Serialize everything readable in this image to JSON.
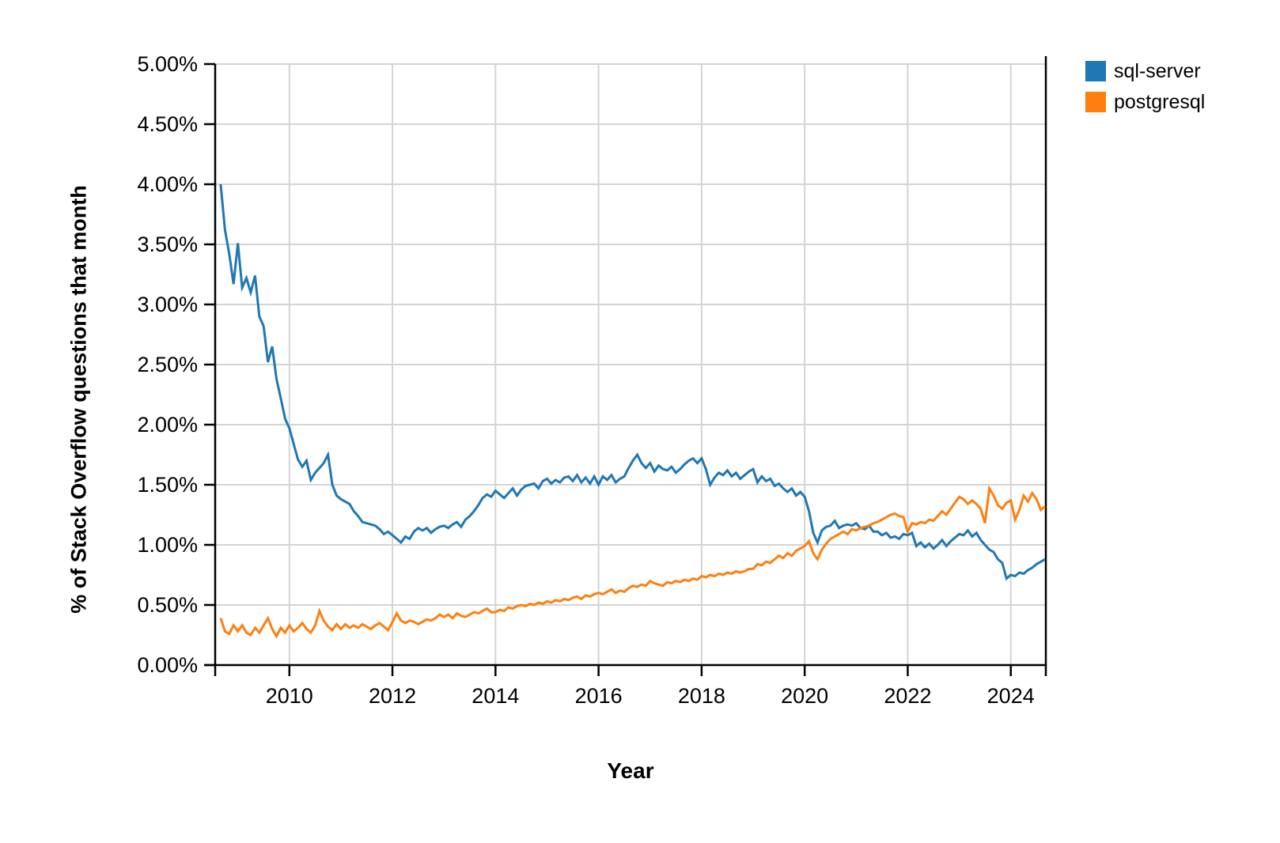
{
  "page": {
    "background": "#ffffff"
  },
  "chart_data": {
    "type": "line",
    "title": "",
    "xlabel": "Year",
    "ylabel": "% of Stack Overflow questions that month",
    "grid": true,
    "legend_position": "top-right-outside",
    "xlim": [
      2008.56,
      2024.68
    ],
    "ylim": [
      0,
      5
    ],
    "y_ticks": {
      "values": [
        0,
        0.5,
        1,
        1.5,
        2,
        2.5,
        3,
        3.5,
        4,
        4.5,
        5
      ],
      "labels": [
        "0.00%",
        "0.50%",
        "1.00%",
        "1.50%",
        "2.00%",
        "2.50%",
        "3.00%",
        "3.50%",
        "4.00%",
        "4.50%",
        "5.00%"
      ]
    },
    "x_ticks": {
      "values": [
        2010,
        2012,
        2014,
        2016,
        2018,
        2020,
        2022,
        2024
      ],
      "labels": [
        "2010",
        "2012",
        "2014",
        "2016",
        "2018",
        "2020",
        "2022",
        "2024"
      ]
    },
    "x_start": "2008-09",
    "x_step_months": 1,
    "axis_colors": {
      "spine": "#000000",
      "gridline": "#d4d4d4",
      "tick_label": "#000000"
    },
    "series": [
      {
        "name": "sql-server",
        "color": "#1f77b4",
        "values": [
          4.0,
          3.62,
          3.42,
          3.17,
          3.51,
          3.14,
          3.22,
          3.1,
          3.24,
          2.9,
          2.82,
          2.52,
          2.65,
          2.38,
          2.22,
          2.05,
          1.97,
          1.84,
          1.71,
          1.65,
          1.7,
          1.54,
          1.6,
          1.64,
          1.68,
          1.75,
          1.5,
          1.41,
          1.38,
          1.36,
          1.34,
          1.28,
          1.24,
          1.19,
          1.18,
          1.17,
          1.16,
          1.13,
          1.09,
          1.11,
          1.08,
          1.05,
          1.02,
          1.07,
          1.05,
          1.11,
          1.14,
          1.12,
          1.14,
          1.1,
          1.13,
          1.15,
          1.16,
          1.14,
          1.17,
          1.19,
          1.15,
          1.21,
          1.24,
          1.28,
          1.33,
          1.39,
          1.42,
          1.4,
          1.45,
          1.42,
          1.39,
          1.43,
          1.47,
          1.41,
          1.46,
          1.49,
          1.5,
          1.51,
          1.47,
          1.53,
          1.55,
          1.51,
          1.54,
          1.52,
          1.56,
          1.57,
          1.53,
          1.58,
          1.52,
          1.56,
          1.51,
          1.57,
          1.5,
          1.57,
          1.54,
          1.58,
          1.52,
          1.55,
          1.57,
          1.64,
          1.7,
          1.75,
          1.68,
          1.64,
          1.68,
          1.61,
          1.66,
          1.63,
          1.62,
          1.65,
          1.6,
          1.63,
          1.67,
          1.7,
          1.72,
          1.68,
          1.72,
          1.63,
          1.5,
          1.56,
          1.6,
          1.58,
          1.62,
          1.57,
          1.6,
          1.55,
          1.58,
          1.61,
          1.63,
          1.52,
          1.57,
          1.53,
          1.55,
          1.49,
          1.51,
          1.47,
          1.44,
          1.47,
          1.41,
          1.44,
          1.4,
          1.28,
          1.1,
          1.02,
          1.12,
          1.15,
          1.16,
          1.2,
          1.14,
          1.16,
          1.17,
          1.16,
          1.18,
          1.14,
          1.13,
          1.16,
          1.11,
          1.11,
          1.08,
          1.1,
          1.06,
          1.07,
          1.05,
          1.09,
          1.08,
          1.1,
          0.99,
          1.02,
          0.98,
          1.01,
          0.97,
          1.0,
          1.04,
          0.99,
          1.03,
          1.06,
          1.09,
          1.08,
          1.12,
          1.07,
          1.1,
          1.04,
          1.0,
          0.96,
          0.94,
          0.88,
          0.85,
          0.72,
          0.75,
          0.74,
          0.77,
          0.76,
          0.79,
          0.81,
          0.84,
          0.86,
          0.88
        ]
      },
      {
        "name": "postgresql",
        "color": "#ff7f0e",
        "values": [
          0.39,
          0.28,
          0.26,
          0.33,
          0.28,
          0.33,
          0.27,
          0.25,
          0.31,
          0.27,
          0.33,
          0.39,
          0.3,
          0.24,
          0.31,
          0.27,
          0.33,
          0.28,
          0.31,
          0.35,
          0.3,
          0.27,
          0.33,
          0.45,
          0.37,
          0.32,
          0.29,
          0.34,
          0.3,
          0.34,
          0.31,
          0.33,
          0.31,
          0.34,
          0.32,
          0.3,
          0.33,
          0.35,
          0.32,
          0.29,
          0.36,
          0.43,
          0.37,
          0.35,
          0.37,
          0.36,
          0.34,
          0.36,
          0.38,
          0.37,
          0.39,
          0.42,
          0.4,
          0.42,
          0.39,
          0.43,
          0.41,
          0.4,
          0.42,
          0.44,
          0.43,
          0.45,
          0.47,
          0.44,
          0.44,
          0.46,
          0.45,
          0.48,
          0.47,
          0.49,
          0.5,
          0.49,
          0.51,
          0.5,
          0.52,
          0.51,
          0.53,
          0.52,
          0.54,
          0.53,
          0.55,
          0.54,
          0.56,
          0.57,
          0.55,
          0.58,
          0.57,
          0.59,
          0.6,
          0.59,
          0.61,
          0.63,
          0.6,
          0.62,
          0.61,
          0.64,
          0.66,
          0.65,
          0.67,
          0.66,
          0.7,
          0.68,
          0.67,
          0.66,
          0.69,
          0.68,
          0.7,
          0.69,
          0.71,
          0.7,
          0.72,
          0.71,
          0.74,
          0.73,
          0.75,
          0.74,
          0.76,
          0.75,
          0.77,
          0.76,
          0.78,
          0.77,
          0.78,
          0.8,
          0.8,
          0.84,
          0.83,
          0.86,
          0.85,
          0.88,
          0.91,
          0.89,
          0.93,
          0.91,
          0.95,
          0.97,
          0.99,
          1.03,
          0.93,
          0.88,
          0.96,
          1.01,
          1.05,
          1.07,
          1.09,
          1.11,
          1.09,
          1.13,
          1.12,
          1.14,
          1.15,
          1.16,
          1.18,
          1.19,
          1.21,
          1.23,
          1.25,
          1.26,
          1.24,
          1.23,
          1.11,
          1.18,
          1.17,
          1.19,
          1.18,
          1.21,
          1.2,
          1.24,
          1.28,
          1.25,
          1.3,
          1.35,
          1.4,
          1.38,
          1.34,
          1.37,
          1.34,
          1.3,
          1.18,
          1.47,
          1.41,
          1.33,
          1.3,
          1.35,
          1.37,
          1.21,
          1.29,
          1.41,
          1.36,
          1.43,
          1.38,
          1.29,
          1.32
        ]
      }
    ]
  }
}
